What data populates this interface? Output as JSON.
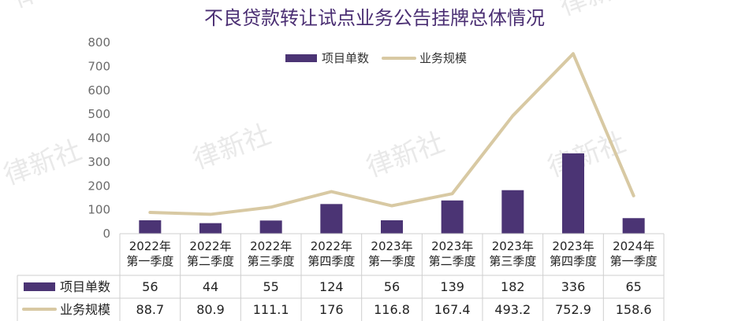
{
  "title": "不良贷款转让试点业务公告挂牌总体情况",
  "watermark": "律新社",
  "chart_data": {
    "type": "bar",
    "title": "不良贷款转让试点业务公告挂牌总体情况",
    "categories": [
      [
        "2022年",
        "第一季度"
      ],
      [
        "2022年",
        "第二季度"
      ],
      [
        "2022年",
        "第三季度"
      ],
      [
        "2022年",
        "第四季度"
      ],
      [
        "2023年",
        "第一季度"
      ],
      [
        "2023年",
        "第二季度"
      ],
      [
        "2023年",
        "第三季度"
      ],
      [
        "2023年",
        "第四季度"
      ],
      [
        "2024年",
        "第一季度"
      ]
    ],
    "series": [
      {
        "name": "项目单数",
        "type": "bar",
        "color": "#4b3474",
        "values": [
          56,
          44,
          55,
          124,
          56,
          139,
          182,
          336,
          65
        ]
      },
      {
        "name": "业务规模",
        "type": "line",
        "color": "#d8c9a3",
        "values": [
          88.7,
          80.9,
          111.1,
          176,
          116.8,
          167.4,
          493.2,
          752.9,
          158.6
        ]
      }
    ],
    "ylim": [
      0,
      800
    ],
    "yticks": [
      0,
      100,
      200,
      300,
      400,
      500,
      600,
      700,
      800
    ],
    "legend_position": "top-center",
    "data_table": true,
    "grid": false
  }
}
